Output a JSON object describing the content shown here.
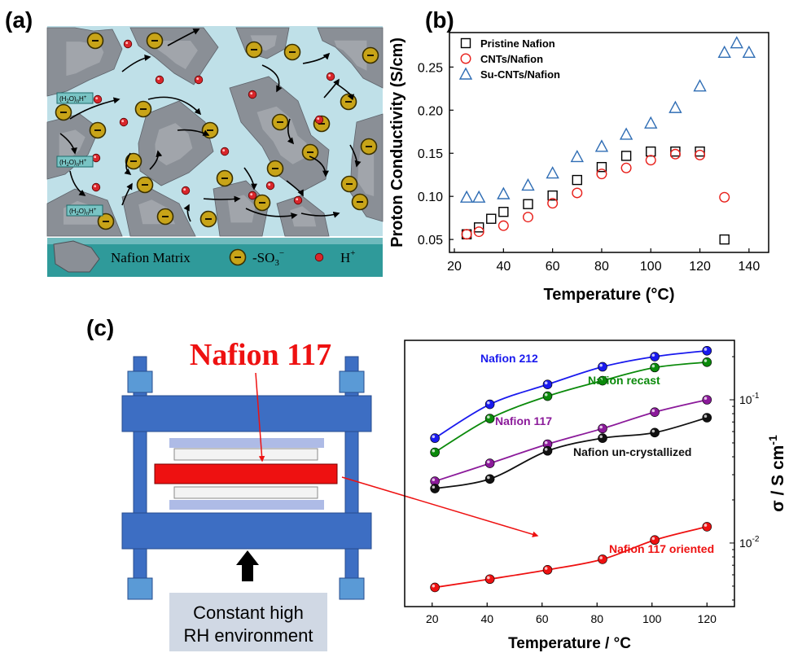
{
  "panels": {
    "a": {
      "label": "(a)",
      "labels": {
        "hydronium": [
          "(H",
          "2",
          "O)",
          "n",
          "H",
          "+"
        ]
      },
      "legend": {
        "matrix": "Nafion Matrix",
        "sulfonate": "-SO",
        "sulfonate_sub": "3",
        "sulfonate_sup": "−",
        "proton": "H",
        "proton_sup": "+"
      },
      "colors": {
        "water": "#bfe0e8",
        "matrix": "#8a8f96",
        "sulfonate": "#c8a418",
        "proton": "#d8262b",
        "legend_bg": "#2f9a9a"
      },
      "icons": [
        "sulfonate-icon",
        "proton-icon",
        "nafion-matrix-icon"
      ]
    },
    "b": {
      "label": "(b)"
    },
    "c": {
      "label": "(c)",
      "membrane_label": "Nafion  117",
      "environment": {
        "line1": "Constant high",
        "line2": "RH environment"
      },
      "colors": {
        "frame": "#3d6ec3",
        "membrane": "#ee1111",
        "spacer": "#aebbe6",
        "label": "#ee1111",
        "env_box": "#d0d8e4"
      },
      "icons": [
        "clamp-frame",
        "up-arrow-icon"
      ]
    }
  },
  "chart_data": [
    {
      "type": "scatter",
      "panel": "b",
      "xlabel": "Temperature (°C)",
      "ylabel": "Proton Conductivity (S/cm)",
      "xlim": [
        18,
        148
      ],
      "ylim": [
        0.035,
        0.29
      ],
      "xticks": [
        20,
        40,
        60,
        80,
        100,
        120,
        140
      ],
      "yticks": [
        0.05,
        0.1,
        0.15,
        0.2,
        0.25
      ],
      "ytick_labels": [
        "0.05",
        "0.10",
        "0.15",
        "0.20",
        "0.25"
      ],
      "legend_position": "top-left",
      "series": [
        {
          "name": "Pristine Nafion",
          "marker": "square",
          "color": "#000000",
          "x": [
            25,
            30,
            35,
            40,
            50,
            60,
            70,
            80,
            90,
            100,
            110,
            120,
            130
          ],
          "y": [
            0.056,
            0.064,
            0.074,
            0.082,
            0.091,
            0.101,
            0.119,
            0.134,
            0.147,
            0.152,
            0.152,
            0.152,
            0.05
          ]
        },
        {
          "name": "CNTs/Nafion",
          "marker": "circle",
          "color": "#e8201b",
          "x": [
            25,
            30,
            40,
            50,
            60,
            70,
            80,
            90,
            100,
            110,
            120,
            130
          ],
          "y": [
            0.056,
            0.059,
            0.066,
            0.076,
            0.092,
            0.104,
            0.126,
            0.133,
            0.142,
            0.149,
            0.148,
            0.099
          ]
        },
        {
          "name": "Su-CNTs/Nafion",
          "marker": "triangle",
          "color": "#2f6db4",
          "x": [
            25,
            30,
            40,
            50,
            60,
            70,
            80,
            90,
            100,
            110,
            120,
            130,
            135,
            140
          ],
          "y": [
            0.099,
            0.099,
            0.103,
            0.113,
            0.127,
            0.146,
            0.158,
            0.172,
            0.185,
            0.203,
            0.228,
            0.267,
            0.278,
            0.267
          ]
        }
      ]
    },
    {
      "type": "line",
      "panel": "c",
      "xlabel": "Temperature / °C",
      "ylabel": "σ / S cm",
      "ylabel_sup": "-1",
      "yscale": "log",
      "xlim": [
        10,
        130
      ],
      "ylim": [
        0.0036,
        0.26
      ],
      "xticks": [
        20,
        40,
        60,
        80,
        100,
        120
      ],
      "yticks": [
        0.01,
        0.1
      ],
      "ytick_labels": [
        [
          "10",
          "-2"
        ],
        [
          "10",
          "-1"
        ]
      ],
      "series": [
        {
          "name": "Nafion 212",
          "color": "#1a1aee",
          "x": [
            21,
            41,
            62,
            82,
            101,
            120
          ],
          "y": [
            0.054,
            0.093,
            0.128,
            0.17,
            0.2,
            0.22
          ]
        },
        {
          "name": "Nafion recast",
          "color": "#0b8a0b",
          "x": [
            21,
            41,
            62,
            82,
            101,
            120
          ],
          "y": [
            0.043,
            0.074,
            0.106,
            0.136,
            0.168,
            0.183
          ]
        },
        {
          "name": "Nafion 117",
          "color": "#8b1a9a",
          "x": [
            21,
            41,
            62,
            82,
            101,
            120
          ],
          "y": [
            0.027,
            0.036,
            0.049,
            0.063,
            0.082,
            0.1
          ]
        },
        {
          "name": "Nafion un-crystallized",
          "color": "#111111",
          "x": [
            21,
            41,
            62,
            82,
            101,
            120
          ],
          "y": [
            0.024,
            0.028,
            0.044,
            0.054,
            0.059,
            0.075
          ]
        },
        {
          "name": "Nafion 117 oriented",
          "color": "#ee1111",
          "x": [
            21,
            41,
            62,
            82,
            101,
            120
          ],
          "y": [
            0.0049,
            0.0056,
            0.0065,
            0.0077,
            0.0105,
            0.013
          ]
        }
      ]
    }
  ]
}
